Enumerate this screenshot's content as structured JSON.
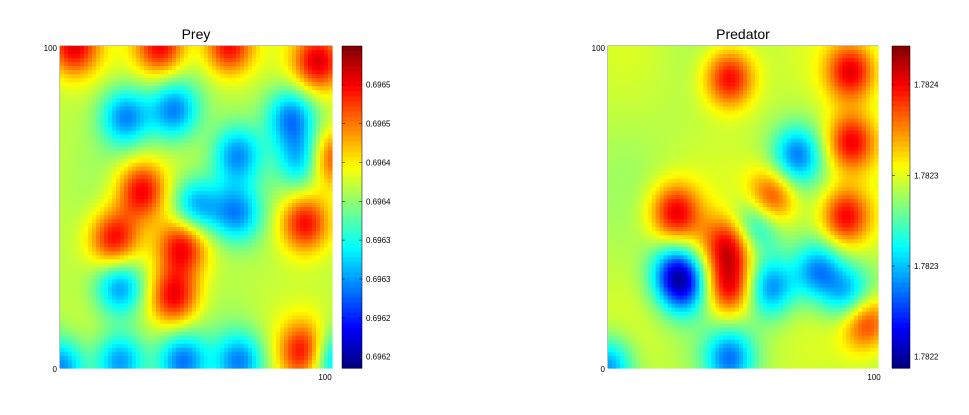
{
  "chart_data": [
    {
      "type": "heatmap",
      "title": "Prey",
      "x_tick_labels": [
        "100"
      ],
      "y_tick_labels": [
        "0",
        "100"
      ],
      "colormap": "jet",
      "colorbar_tick_labels": [
        "0.6965",
        "0.6965",
        "0.6964",
        "0.6964",
        "0.6963",
        "0.6963",
        "0.6962",
        "0.6962"
      ],
      "features": {
        "hot_spots": [
          [
            0.37,
            0.0
          ],
          [
            0.62,
            0.0
          ],
          [
            0.95,
            0.05
          ],
          [
            0.2,
            0.6
          ],
          [
            0.45,
            0.62
          ],
          [
            0.3,
            0.45
          ],
          [
            0.42,
            0.78
          ],
          [
            0.98,
            0.35
          ],
          [
            0.9,
            0.55
          ],
          [
            0.9,
            0.95
          ],
          [
            0.05,
            0.0
          ]
        ],
        "cold_spots": [
          [
            0.0,
            1.0
          ],
          [
            0.65,
            0.34
          ],
          [
            0.24,
            0.22
          ],
          [
            0.22,
            0.75
          ],
          [
            0.5,
            0.5
          ],
          [
            0.9,
            0.35
          ],
          [
            0.65,
            0.52
          ],
          [
            0.85,
            0.22
          ],
          [
            0.42,
            0.2
          ],
          [
            0.22,
            0.98
          ],
          [
            0.45,
            0.98
          ],
          [
            0.66,
            0.98
          ],
          [
            1.0,
            0.97
          ]
        ]
      }
    },
    {
      "type": "heatmap",
      "title": "Predator",
      "x_tick_labels": [
        "100"
      ],
      "y_tick_labels": [
        "0",
        "100"
      ],
      "colormap": "jet",
      "colorbar_tick_labels": [
        "1.7824",
        "1.7823",
        "1.7823",
        "1.7822"
      ],
      "features": {
        "hot_spots": [
          [
            0.45,
            0.1
          ],
          [
            0.9,
            0.08
          ],
          [
            0.9,
            0.3
          ],
          [
            0.25,
            0.52
          ],
          [
            0.45,
            0.62
          ],
          [
            0.35,
            0.6
          ],
          [
            0.45,
            0.75
          ],
          [
            0.6,
            0.48
          ],
          [
            0.88,
            0.53
          ],
          [
            0.95,
            0.85
          ]
        ],
        "cold_spots": [
          [
            0.0,
            1.0
          ],
          [
            0.7,
            0.34
          ],
          [
            0.25,
            0.7
          ],
          [
            0.35,
            0.6
          ],
          [
            0.55,
            0.55
          ],
          [
            0.28,
            0.75
          ],
          [
            0.6,
            0.75
          ],
          [
            0.78,
            0.7
          ],
          [
            0.9,
            0.78
          ],
          [
            0.45,
            0.97
          ]
        ]
      }
    }
  ]
}
